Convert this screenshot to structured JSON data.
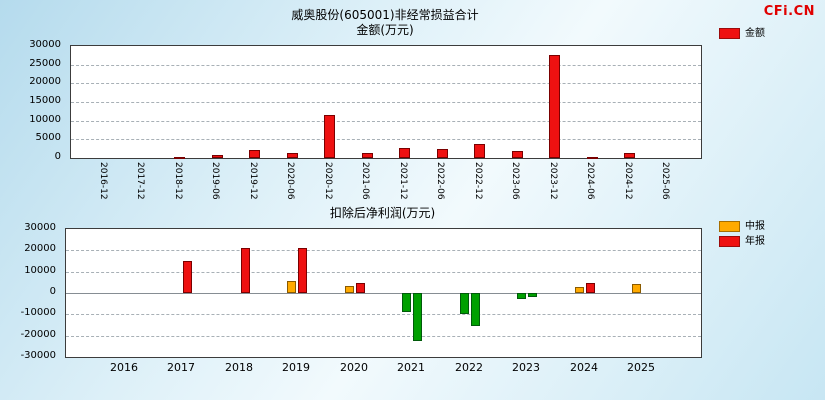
{
  "watermark": {
    "text": "CFi.CN"
  },
  "colors": {
    "amount_red": "#ee1111",
    "interim_yellow": "#ffaa00",
    "annual_red": "#ee1111",
    "negative_green": "#00a000",
    "background_blue": "#bfe0ef",
    "plot_background": "#ffffff"
  },
  "chart_data": [
    {
      "id": "nonrecurring-gains",
      "type": "bar",
      "title": "威奥股份(605001)非经常损益合计",
      "subtitle": "金额(万元)",
      "legend": [
        {
          "label": "金额",
          "color": "#ee1111"
        }
      ],
      "legend_position": "top-right",
      "grid": true,
      "ylim": [
        0,
        30000
      ],
      "yticks": [
        0,
        5000,
        10000,
        15000,
        20000,
        25000,
        30000
      ],
      "categories": [
        "2016-12",
        "2017-12",
        "2018-12",
        "2019-06",
        "2019-12",
        "2020-06",
        "2020-12",
        "2021-06",
        "2021-12",
        "2022-06",
        "2022-12",
        "2023-06",
        "2023-12",
        "2024-06",
        "2024-12",
        "2025-06"
      ],
      "values": [
        0,
        0,
        400,
        900,
        2200,
        1400,
        11500,
        1400,
        2700,
        2500,
        3700,
        1800,
        27500,
        250,
        1300,
        0
      ]
    },
    {
      "id": "net-profit-after-deduction",
      "type": "bar",
      "title": "扣除后净利润(万元)",
      "legend": [
        {
          "label": "中报",
          "color": "#ffaa00"
        },
        {
          "label": "年报",
          "color": "#ee1111"
        }
      ],
      "negative_color": "#00a000",
      "legend_position": "top-right",
      "grid": true,
      "ylim": [
        -30000,
        30000
      ],
      "yticks": [
        -30000,
        -20000,
        -10000,
        0,
        10000,
        20000,
        30000
      ],
      "categories": [
        "2016",
        "2017",
        "2018",
        "2019",
        "2020",
        "2021",
        "2022",
        "2023",
        "2024",
        "2025"
      ],
      "series": [
        {
          "name": "中报",
          "values": [
            null,
            null,
            null,
            5500,
            3300,
            -9000,
            -10000,
            -2800,
            3000,
            4000
          ]
        },
        {
          "name": "年报",
          "values": [
            null,
            15000,
            21000,
            21000,
            4800,
            -22500,
            -15500,
            -2000,
            4500,
            null
          ]
        }
      ]
    }
  ]
}
